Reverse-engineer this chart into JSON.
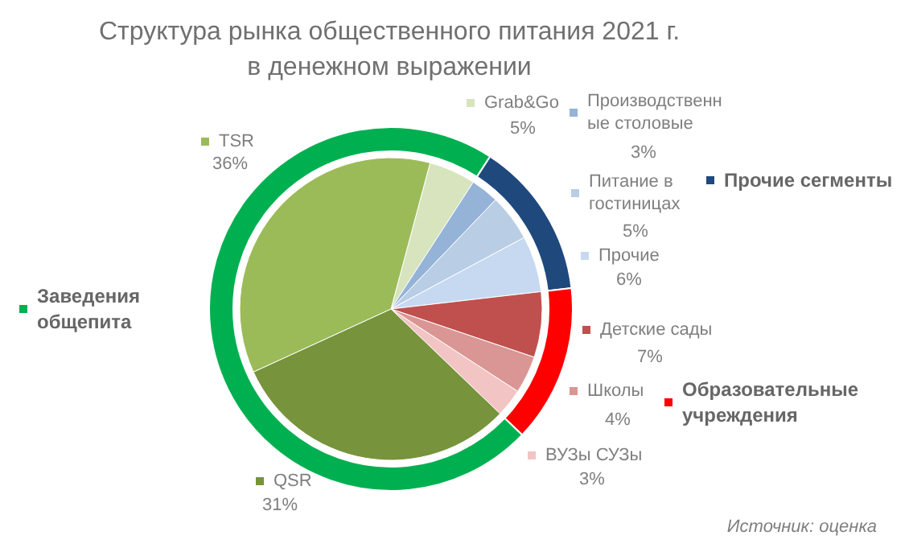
{
  "chart_data": [
    {
      "type": "pie",
      "title": "Структура рынка общественного питания 2021 г. в денежном выражении",
      "categories": [
        "Grab&Go",
        "Производственные столовые",
        "Питание в гостиницах",
        "Прочие",
        "Детские сады",
        "Школы",
        "ВУЗы СУЗы",
        "QSR",
        "TSR"
      ],
      "values": [
        5,
        3,
        5,
        6,
        7,
        4,
        3,
        31,
        36
      ],
      "value_labels": [
        "5%",
        "3%",
        "5%",
        "6%",
        "7%",
        "4%",
        "3%",
        "31%",
        "36%"
      ],
      "colors": [
        "#d7e4bd",
        "#95b3d7",
        "#b9cde5",
        "#c6d9f1",
        "#c0504d",
        "#d99694",
        "#f2c4c3",
        "#77933c",
        "#9bbb59"
      ],
      "legend": "right",
      "annotations": [
        "Источник: оценка"
      ]
    },
    {
      "type": "donut",
      "categories": [
        "Прочие сегменты",
        "Образовательные учреждения",
        "Заведения общепита"
      ],
      "values": [
        14,
        14,
        72
      ],
      "colors": [
        "#1f497d",
        "#ff0000",
        "#00b050"
      ],
      "legend": "right"
    }
  ]
}
